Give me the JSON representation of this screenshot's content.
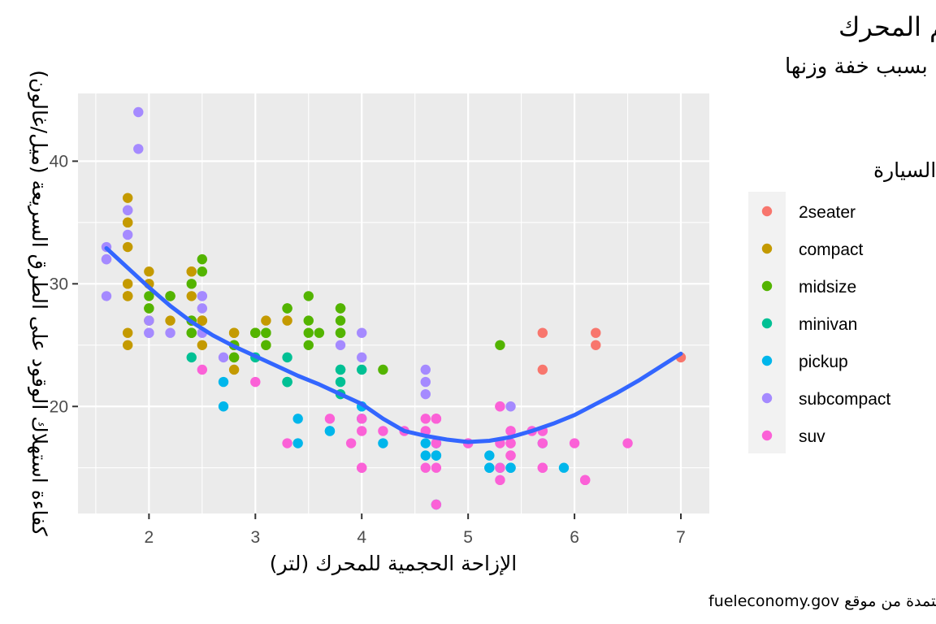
{
  "chart_data": {
    "type": "scatter",
    "title": "كفاءة استهلاك الوقود تنخفض عموماً مع زيادة حجم المحرك",
    "subtitle": "السيارات ذات المقعدين (الرياضية) تشكل استثناءً بسبب خفة وزنها",
    "xlabel": "الإزاحة الحجمية للمحرك (لتر)",
    "ylabel": "كفاءة استهلاك الوقود على الطرق السريعة (ميل/غالون)",
    "caption": "البيانات مستمدة من موقع fueleconomy.gov",
    "legend_title": "نوع السيارة",
    "legend_position": "right",
    "xlim": [
      1.6,
      7.0
    ],
    "ylim": [
      12,
      44
    ],
    "x_ticks": [
      2,
      3,
      4,
      5,
      6,
      7
    ],
    "y_ticks": [
      20,
      30,
      40
    ],
    "grid": true,
    "series": [
      {
        "name": "2seater",
        "color": "#F8766D",
        "points": [
          [
            5.7,
            26
          ],
          [
            5.7,
            23
          ],
          [
            6.2,
            26
          ],
          [
            6.2,
            25
          ],
          [
            7.0,
            24
          ]
        ]
      },
      {
        "name": "compact",
        "color": "#C49A00",
        "points": [
          [
            1.8,
            29
          ],
          [
            1.8,
            29
          ],
          [
            2.0,
            31
          ],
          [
            2.0,
            30
          ],
          [
            2.8,
            26
          ],
          [
            2.8,
            26
          ],
          [
            3.1,
            27
          ],
          [
            1.8,
            26
          ],
          [
            1.8,
            25
          ],
          [
            2.0,
            28
          ],
          [
            2.0,
            27
          ],
          [
            2.8,
            25
          ],
          [
            2.8,
            25
          ],
          [
            3.1,
            25
          ],
          [
            2.2,
            27
          ],
          [
            2.2,
            29
          ],
          [
            2.4,
            31
          ],
          [
            2.4,
            31
          ],
          [
            3.0,
            26
          ],
          [
            3.3,
            27
          ],
          [
            1.8,
            29
          ],
          [
            1.8,
            33
          ],
          [
            1.8,
            35
          ],
          [
            1.8,
            37
          ],
          [
            1.8,
            35
          ],
          [
            1.8,
            30
          ],
          [
            2.5,
            27
          ],
          [
            2.5,
            27
          ],
          [
            2.8,
            24
          ],
          [
            2.8,
            23
          ],
          [
            2.4,
            29
          ],
          [
            2.5,
            25
          ],
          [
            2.5,
            27
          ]
        ]
      },
      {
        "name": "midsize",
        "color": "#53B400",
        "points": [
          [
            2.4,
            27
          ],
          [
            2.4,
            30
          ],
          [
            3.1,
            26
          ],
          [
            3.5,
            29
          ],
          [
            3.6,
            26
          ],
          [
            2.4,
            27
          ],
          [
            3.0,
            26
          ],
          [
            3.3,
            28
          ],
          [
            3.3,
            28
          ],
          [
            3.8,
            26
          ],
          [
            3.8,
            27
          ],
          [
            3.8,
            28
          ],
          [
            4.2,
            23
          ],
          [
            2.5,
            32
          ],
          [
            2.5,
            31
          ],
          [
            3.5,
            25
          ],
          [
            3.5,
            26
          ],
          [
            3.8,
            26
          ],
          [
            3.8,
            28
          ],
          [
            2.0,
            28
          ],
          [
            2.0,
            29
          ],
          [
            2.8,
            25
          ],
          [
            2.8,
            24
          ],
          [
            3.1,
            26
          ],
          [
            3.1,
            25
          ],
          [
            2.4,
            26
          ],
          [
            3.0,
            26
          ],
          [
            3.5,
            27
          ],
          [
            5.3,
            25
          ],
          [
            2.2,
            29
          ],
          [
            2.2,
            29
          ],
          [
            2.4,
            26
          ]
        ]
      },
      {
        "name": "minivan",
        "color": "#00C094",
        "points": [
          [
            2.4,
            24
          ],
          [
            3.0,
            24
          ],
          [
            3.3,
            22
          ],
          [
            3.3,
            22
          ],
          [
            3.3,
            24
          ],
          [
            3.8,
            22
          ],
          [
            3.8,
            21
          ],
          [
            3.8,
            23
          ],
          [
            3.8,
            23
          ],
          [
            4.0,
            23
          ],
          [
            3.3,
            22
          ]
        ]
      },
      {
        "name": "pickup",
        "color": "#00B6EB",
        "points": [
          [
            2.7,
            20
          ],
          [
            2.7,
            22
          ],
          [
            3.4,
            19
          ],
          [
            3.4,
            17
          ],
          [
            4.0,
            20
          ],
          [
            4.7,
            17
          ],
          [
            4.7,
            16
          ],
          [
            4.7,
            12
          ],
          [
            5.2,
            16
          ],
          [
            5.2,
            15
          ],
          [
            5.7,
            17
          ],
          [
            5.9,
            15
          ],
          [
            4.2,
            17
          ],
          [
            4.6,
            16
          ],
          [
            4.6,
            17
          ],
          [
            5.4,
            15
          ],
          [
            5.4,
            15
          ],
          [
            3.7,
            18
          ],
          [
            4.7,
            17
          ],
          [
            4.7,
            16
          ],
          [
            5.2,
            15
          ],
          [
            5.3,
            15
          ],
          [
            4.0,
            20
          ],
          [
            3.7,
            18
          ],
          [
            4.0,
            19
          ]
        ]
      },
      {
        "name": "subcompact",
        "color": "#A58AFF",
        "points": [
          [
            1.6,
            33
          ],
          [
            1.6,
            32
          ],
          [
            1.6,
            32
          ],
          [
            1.6,
            29
          ],
          [
            1.8,
            34
          ],
          [
            1.8,
            36
          ],
          [
            1.8,
            36
          ],
          [
            1.9,
            44
          ],
          [
            1.9,
            41
          ],
          [
            2.0,
            26
          ],
          [
            2.0,
            26
          ],
          [
            2.0,
            27
          ],
          [
            2.2,
            26
          ],
          [
            2.5,
            28
          ],
          [
            2.5,
            26
          ],
          [
            2.5,
            29
          ],
          [
            2.5,
            29
          ],
          [
            2.7,
            24
          ],
          [
            4.0,
            24
          ],
          [
            4.0,
            26
          ],
          [
            4.6,
            23
          ],
          [
            4.6,
            22
          ],
          [
            4.6,
            21
          ],
          [
            5.4,
            20
          ],
          [
            3.8,
            25
          ]
        ]
      },
      {
        "name": "suv",
        "color": "#FB61D7",
        "points": [
          [
            5.3,
            20
          ],
          [
            5.3,
            15
          ],
          [
            5.3,
            20
          ],
          [
            5.7,
            17
          ],
          [
            6.5,
            17
          ],
          [
            4.7,
            17
          ],
          [
            4.7,
            19
          ],
          [
            4.7,
            15
          ],
          [
            4.7,
            12
          ],
          [
            5.7,
            15
          ],
          [
            6.1,
            14
          ],
          [
            5.3,
            14
          ],
          [
            5.4,
            17
          ],
          [
            5.4,
            16
          ],
          [
            5.4,
            18
          ],
          [
            4.6,
            19
          ],
          [
            5.0,
            17
          ],
          [
            4.0,
            19
          ],
          [
            4.0,
            15
          ],
          [
            4.6,
            15
          ],
          [
            5.0,
            17
          ],
          [
            4.2,
            18
          ],
          [
            4.4,
            18
          ],
          [
            4.6,
            18
          ],
          [
            5.4,
            18
          ],
          [
            5.4,
            17
          ],
          [
            5.4,
            16
          ],
          [
            2.5,
            23
          ],
          [
            3.0,
            22
          ],
          [
            3.3,
            17
          ],
          [
            3.7,
            19
          ],
          [
            3.9,
            17
          ],
          [
            4.0,
            15
          ],
          [
            4.0,
            18
          ],
          [
            4.7,
            19
          ],
          [
            4.7,
            19
          ],
          [
            5.7,
            18
          ],
          [
            5.7,
            18
          ],
          [
            6.0,
            17
          ],
          [
            6.1,
            14
          ],
          [
            5.3,
            17
          ],
          [
            5.6,
            18
          ],
          [
            5.7,
            15
          ]
        ]
      }
    ],
    "smooth": {
      "color": "#3366FF",
      "x": [
        1.6,
        1.8,
        2.0,
        2.2,
        2.4,
        2.6,
        2.8,
        3.0,
        3.2,
        3.4,
        3.6,
        3.8,
        4.0,
        4.2,
        4.4,
        4.6,
        4.8,
        5.0,
        5.2,
        5.4,
        5.6,
        5.8,
        6.0,
        6.2,
        6.4,
        6.6,
        6.8,
        7.0
      ],
      "y": [
        32.9,
        31.3,
        29.7,
        28.2,
        26.9,
        25.8,
        24.9,
        24.1,
        23.3,
        22.5,
        21.8,
        21.0,
        20.2,
        19.0,
        18.0,
        17.6,
        17.3,
        17.1,
        17.2,
        17.5,
        18.0,
        18.6,
        19.3,
        20.2,
        21.1,
        22.1,
        23.2,
        24.3
      ]
    }
  }
}
